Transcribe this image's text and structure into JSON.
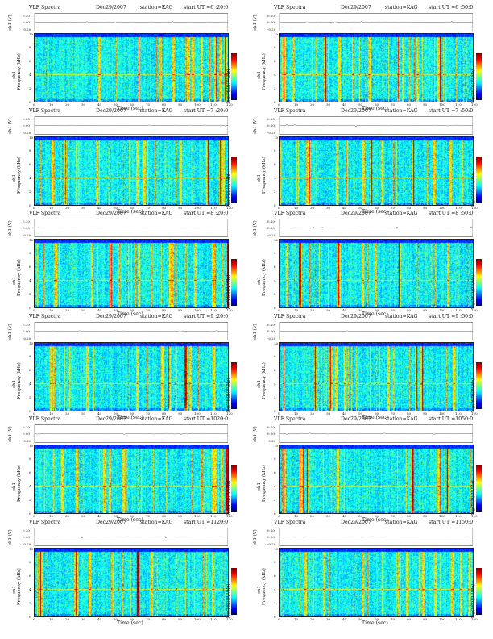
{
  "chart_data": [
    {
      "type": "heatmap",
      "title": "VLF Spectra",
      "date": "Dec29/2007",
      "station": "station=KAG",
      "start": "start  UT  =6 :20:0",
      "top_ylabel": "ch1 (V)",
      "top_yticks": [
        "0.20",
        "0.00",
        "-0.20"
      ],
      "ylabel_a": "ch1",
      "ylabel_b": "Frequency (kHz)",
      "yticks": [
        "0",
        "2",
        "4",
        "6",
        "8",
        "10"
      ],
      "ylim": [
        0,
        10
      ],
      "xlabel": "Time (sec)",
      "xticks": [
        "0",
        "10",
        "20",
        "30",
        "40",
        "50",
        "60",
        "70",
        "80",
        "90",
        "100",
        "110",
        "120"
      ],
      "xlim": [
        0,
        120
      ],
      "colorbar_label": "log(PSD)(V²/Hz)"
    },
    {
      "type": "heatmap",
      "title": "VLF Spectra",
      "date": "Dec29/2007",
      "station": "station=KAG",
      "start": "start  UT  =6 :50:0",
      "top_ylabel": "ch1 (V)",
      "top_yticks": [
        "0.20",
        "0.00",
        "-0.20"
      ],
      "ylabel_a": "ch1",
      "ylabel_b": "Frequency (kHz)",
      "yticks": [
        "0",
        "2",
        "4",
        "6",
        "8",
        "10"
      ],
      "ylim": [
        0,
        10
      ],
      "xlabel": "Time (sec)",
      "xticks": [
        "0",
        "10",
        "20",
        "30",
        "40",
        "50",
        "60",
        "70",
        "80",
        "90",
        "100",
        "110",
        "120"
      ],
      "xlim": [
        0,
        120
      ],
      "colorbar_label": "log(PSD)(V²/Hz)"
    },
    {
      "type": "heatmap",
      "title": "VLF Spectra",
      "date": "Dec29/2007",
      "station": "station=KAG",
      "start": "start  UT  =7 :20:0",
      "top_ylabel": "ch1 (V)",
      "top_yticks": [
        "0.20",
        "0.00",
        "-0.20"
      ],
      "ylabel_a": "ch1",
      "ylabel_b": "Frequency (kHz)",
      "yticks": [
        "0",
        "2",
        "4",
        "6",
        "8",
        "10"
      ],
      "ylim": [
        0,
        10
      ],
      "xlabel": "Time (sec)",
      "xticks": [
        "0",
        "10",
        "20",
        "30",
        "40",
        "50",
        "60",
        "70",
        "80",
        "90",
        "100",
        "110",
        "120"
      ],
      "xlim": [
        0,
        120
      ],
      "colorbar_label": "log(PSD)(V²/Hz)"
    },
    {
      "type": "heatmap",
      "title": "VLF Spectra",
      "date": "Dec29/2007",
      "station": "station=KAG",
      "start": "start  UT  =7 :50:0",
      "top_ylabel": "ch1 (V)",
      "top_yticks": [
        "0.20",
        "0.00",
        "-0.20"
      ],
      "ylabel_a": "ch1",
      "ylabel_b": "Frequency (kHz)",
      "yticks": [
        "0",
        "2",
        "4",
        "6",
        "8",
        "10"
      ],
      "ylim": [
        0,
        10
      ],
      "xlabel": "Time (sec)",
      "xticks": [
        "0",
        "10",
        "20",
        "30",
        "40",
        "50",
        "60",
        "70",
        "80",
        "90",
        "100",
        "110",
        "120"
      ],
      "xlim": [
        0,
        120
      ],
      "colorbar_label": "log(PSD)(V²/Hz)"
    },
    {
      "type": "heatmap",
      "title": "VLF Spectra",
      "date": "Dec29/2007",
      "station": "station=KAG",
      "start": "start  UT  =8 :20:0",
      "top_ylabel": "ch1 (V)",
      "top_yticks": [
        "0.20",
        "0.00",
        "-0.20"
      ],
      "ylabel_a": "ch1",
      "ylabel_b": "Frequency (kHz)",
      "yticks": [
        "0",
        "2",
        "4",
        "6",
        "8",
        "10"
      ],
      "ylim": [
        0,
        10
      ],
      "xlabel": "Time (sec)",
      "xticks": [
        "0",
        "10",
        "20",
        "30",
        "40",
        "50",
        "60",
        "70",
        "80",
        "90",
        "100",
        "110",
        "120"
      ],
      "xlim": [
        0,
        120
      ],
      "colorbar_label": "log(PSD)(V²/Hz)"
    },
    {
      "type": "heatmap",
      "title": "VLF Spectra",
      "date": "Dec29/2007",
      "station": "station=KAG",
      "start": "start  UT  =8 :50:0",
      "top_ylabel": "ch1 (V)",
      "top_yticks": [
        "0.20",
        "0.00",
        "-0.20"
      ],
      "ylabel_a": "ch1",
      "ylabel_b": "Frequency (kHz)",
      "yticks": [
        "0",
        "2",
        "4",
        "6",
        "8",
        "10"
      ],
      "ylim": [
        0,
        10
      ],
      "xlabel": "Time (sec)",
      "xticks": [
        "0",
        "10",
        "20",
        "30",
        "40",
        "50",
        "60",
        "70",
        "80",
        "90",
        "100",
        "110",
        "120"
      ],
      "xlim": [
        0,
        120
      ],
      "colorbar_label": "log(PSD)(V²/Hz)"
    },
    {
      "type": "heatmap",
      "title": "VLF Spectra",
      "date": "Dec29/2007",
      "station": "station=KAG",
      "start": "start  UT  =9 :20:0",
      "top_ylabel": "ch1 (V)",
      "top_yticks": [
        "0.20",
        "0.00",
        "-0.20"
      ],
      "ylabel_a": "ch1",
      "ylabel_b": "Frequency (kHz)",
      "yticks": [
        "0",
        "2",
        "4",
        "6",
        "8",
        "10"
      ],
      "ylim": [
        0,
        10
      ],
      "xlabel": "Time (sec)",
      "xticks": [
        "0",
        "10",
        "20",
        "30",
        "40",
        "50",
        "60",
        "70",
        "80",
        "90",
        "100",
        "110",
        "120"
      ],
      "xlim": [
        0,
        120
      ],
      "colorbar_label": "log(PSD)(V²/Hz)"
    },
    {
      "type": "heatmap",
      "title": "VLF Spectra",
      "date": "Dec29/2007",
      "station": "station=KAG",
      "start": "start  UT  =9 :50:0",
      "top_ylabel": "ch1 (V)",
      "top_yticks": [
        "0.20",
        "0.00",
        "-0.20"
      ],
      "ylabel_a": "ch1",
      "ylabel_b": "Frequency (kHz)",
      "yticks": [
        "0",
        "2",
        "4",
        "6",
        "8",
        "10"
      ],
      "ylim": [
        0,
        10
      ],
      "xlabel": "Time (sec)",
      "xticks": [
        "0",
        "10",
        "20",
        "30",
        "40",
        "50",
        "60",
        "70",
        "80",
        "90",
        "100",
        "110",
        "120"
      ],
      "xlim": [
        0,
        120
      ],
      "colorbar_label": "log(PSD)(V²/Hz)"
    },
    {
      "type": "heatmap",
      "title": "VLF Spectra",
      "date": "Dec29/2007",
      "station": "station=KAG",
      "start": "start  UT  =1020:0",
      "top_ylabel": "ch1 (V)",
      "top_yticks": [
        "0.20",
        "0.00",
        "-0.20"
      ],
      "ylabel_a": "ch1",
      "ylabel_b": "Frequency (kHz)",
      "yticks": [
        "0",
        "2",
        "4",
        "6",
        "8",
        "10"
      ],
      "ylim": [
        0,
        10
      ],
      "xlabel": "Time (sec)",
      "xticks": [
        "0",
        "10",
        "20",
        "30",
        "40",
        "50",
        "60",
        "70",
        "80",
        "90",
        "100",
        "110",
        "120"
      ],
      "xlim": [
        0,
        120
      ],
      "colorbar_label": "log(PSD)(V²/Hz)"
    },
    {
      "type": "heatmap",
      "title": "VLF Spectra",
      "date": "Dec29/2007",
      "station": "station=KAG",
      "start": "start  UT  =1050:0",
      "top_ylabel": "ch1 (V)",
      "top_yticks": [
        "0.20",
        "0.00",
        "-0.20"
      ],
      "ylabel_a": "ch1",
      "ylabel_b": "Frequency (kHz)",
      "yticks": [
        "0",
        "2",
        "4",
        "6",
        "8",
        "10"
      ],
      "ylim": [
        0,
        10
      ],
      "xlabel": "Time (sec)",
      "xticks": [
        "0",
        "10",
        "20",
        "30",
        "40",
        "50",
        "60",
        "70",
        "80",
        "90",
        "100",
        "110",
        "120"
      ],
      "xlim": [
        0,
        120
      ],
      "colorbar_label": "log(PSD)(V²/Hz)"
    },
    {
      "type": "heatmap",
      "title": "VLF Spectra",
      "date": "Dec29/2007",
      "station": "station=KAG",
      "start": "start  UT  =1120:0",
      "top_ylabel": "ch1 (V)",
      "top_yticks": [
        "0.20",
        "0.00",
        "-0.20"
      ],
      "ylabel_a": "ch1",
      "ylabel_b": "Frequency (kHz)",
      "yticks": [
        "0",
        "2",
        "4",
        "6",
        "8",
        "10"
      ],
      "ylim": [
        0,
        10
      ],
      "xlabel": "Time (sec)",
      "xticks": [
        "0",
        "10",
        "20",
        "30",
        "40",
        "50",
        "60",
        "70",
        "80",
        "90",
        "100",
        "110",
        "120"
      ],
      "xlim": [
        0,
        120
      ],
      "colorbar_label": "log(PSD)(V²/Hz)"
    },
    {
      "type": "heatmap",
      "title": "VLF Spectra",
      "date": "Dec29/2007",
      "station": "station=KAG",
      "start": "start  UT  =1150:0",
      "top_ylabel": "ch1 (V)",
      "top_yticks": [
        "0.20",
        "0.00",
        "-0.20"
      ],
      "ylabel_a": "ch1",
      "ylabel_b": "Frequency (kHz)",
      "yticks": [
        "0",
        "2",
        "4",
        "6",
        "8",
        "10"
      ],
      "ylim": [
        0,
        10
      ],
      "xlabel": "Time (sec)",
      "xticks": [
        "0",
        "10",
        "20",
        "30",
        "40",
        "50",
        "60",
        "70",
        "80",
        "90",
        "100",
        "110",
        "120"
      ],
      "xlim": [
        0,
        120
      ],
      "colorbar_label": "log(PSD)(V²/Hz)"
    }
  ]
}
